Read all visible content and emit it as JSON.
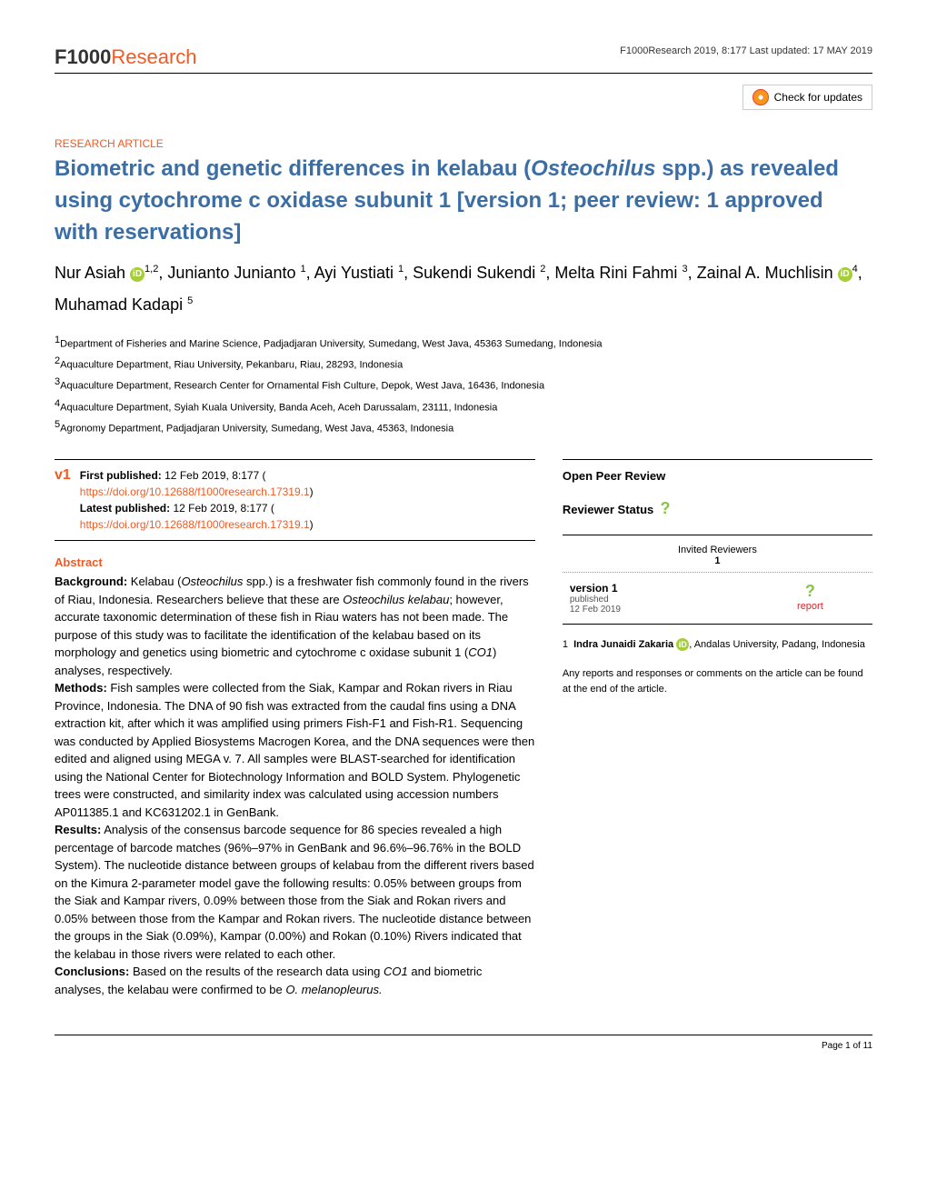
{
  "header": {
    "logo_prefix": "F1000",
    "logo_suffix": "Research",
    "meta": "F1000Research 2019, 8:177 Last updated: 17 MAY 2019",
    "updates_label": "Check for updates"
  },
  "article": {
    "type": "RESEARCH ARTICLE",
    "title_parts": {
      "p1": "Biometric and genetic differences in kelabau (",
      "em1": "Osteochilus",
      "p2": " spp.) as revealed using cytochrome c oxidase subunit 1",
      "p3": " [version 1; peer review: 1 approved with reservations]"
    }
  },
  "authors": [
    {
      "name": "Nur Asiah",
      "orcid": true,
      "sup": "1,2",
      "sep": ", "
    },
    {
      "name": "Junianto Junianto",
      "orcid": false,
      "sup": "1",
      "sep": ", "
    },
    {
      "name": "Ayi Yustiati",
      "orcid": false,
      "sup": "1",
      "sep": ", "
    },
    {
      "name": "Sukendi Sukendi",
      "orcid": false,
      "sup": "2",
      "sep": ", "
    },
    {
      "name": "Melta Rini Fahmi",
      "orcid": false,
      "sup": "3",
      "sep": ", "
    },
    {
      "name": "Zainal A. Muchlisin",
      "orcid": true,
      "sup": "4",
      "sep": ", "
    },
    {
      "name": "Muhamad Kadapi",
      "orcid": false,
      "sup": "5",
      "sep": ""
    }
  ],
  "affiliations": [
    "1Department of Fisheries and Marine Science, Padjadjaran University, Sumedang, West Java, 45363 Sumedang, Indonesia",
    "2Aquaculture Department, Riau University, Pekanbaru, Riau, 28293, Indonesia",
    "3Aquaculture Department, Research Center for Ornamental Fish Culture, Depok, West Java, 16436, Indonesia",
    "4Aquaculture Department, Syiah Kuala University, Banda Aceh, Aceh Darussalam, 23111, Indonesia",
    "5Agronomy Department, Padjadjaran University, Sumedang, West Java, 45363, Indonesia"
  ],
  "version": {
    "badge": "v1",
    "first_label": "First published:",
    "first_text": " 12 Feb 2019, 8:177 (",
    "first_doi": "https://doi.org/10.12688/f1000research.17319.1",
    "latest_label": "Latest published:",
    "latest_text": " 12 Feb 2019, 8:177 (",
    "latest_doi": "https://doi.org/10.12688/f1000research.17319.1"
  },
  "abstract": {
    "heading": "Abstract",
    "bg_label": "Background:",
    "bg_text_1": " Kelabau (",
    "bg_em": "Osteochilus",
    "bg_text_2": " spp.) is a freshwater fish commonly found in the rivers of Riau, Indonesia. Researchers believe that these are ",
    "bg_em2": "Osteochilus kelabau",
    "bg_text_3": "; however, accurate taxonomic determination of these fish in Riau waters has not been made. The purpose of this study was to facilitate the identification of the kelabau based on its morphology and genetics using biometric and cytochrome c oxidase subunit 1 (",
    "bg_em3": "CO1",
    "bg_text_4": ") analyses, respectively.",
    "methods_label": "Methods:",
    "methods_text": " Fish samples were collected from the Siak, Kampar and Rokan rivers in Riau Province, Indonesia. The DNA of 90 fish was extracted from the caudal fins using a DNA extraction kit, after which it was amplified using primers Fish-F1 and Fish-R1. Sequencing was conducted by Applied Biosystems Macrogen Korea, and the DNA sequences were then edited and aligned using MEGA v. 7. All samples were BLAST-searched for identification using the National Center for Biotechnology Information and BOLD System. Phylogenetic trees were constructed, and similarity index was calculated using accession numbers AP011385.1 and KC631202.1 in GenBank.",
    "results_label": "Results:",
    "results_text": " Analysis of the consensus barcode sequence for 86 species revealed a high percentage of barcode matches (96%–97% in GenBank and 96.6%–96.76% in the BOLD System). The nucleotide distance between groups of kelabau from the different rivers based on the Kimura 2-parameter model gave the following results: 0.05% between groups from the Siak and Kampar rivers, 0.09% between those from the Siak and Rokan rivers and 0.05% between those from the Kampar and Rokan rivers. The nucleotide distance between the groups in the Siak (0.09%), Kampar (0.00%) and Rokan (0.10%) Rivers indicated that the kelabau in those rivers were related to each other.",
    "conclusions_label": "Conclusions:",
    "conclusions_text_1": " Based on the results of the research data using ",
    "conclusions_em1": "CO1",
    "conclusions_text_2": " and biometric analyses, the kelabau were confirmed to be ",
    "conclusions_em2": "O. melanopleurus."
  },
  "peer": {
    "heading": "Open Peer Review",
    "status_label": "Reviewer Status",
    "invited_label": "Invited Reviewers",
    "col_num": "1",
    "version_label": "version 1",
    "published_label": "published",
    "published_date": "12 Feb 2019",
    "report_label": "report",
    "reviewer_num": "1",
    "reviewer_name": "Indra Junaidi Zakaria",
    "reviewer_affil": ", Andalas University, Padang, Indonesia",
    "footer_note": "Any reports and responses or comments on the article can be found at the end of the article."
  },
  "footer": {
    "page": "Page 1 of 11"
  },
  "colors": {
    "accent": "#f15a22",
    "title_blue": "#3a6ea5",
    "orcid_green": "#a6ce39",
    "question_green": "#8bc34a",
    "report_red": "#e31e24"
  }
}
